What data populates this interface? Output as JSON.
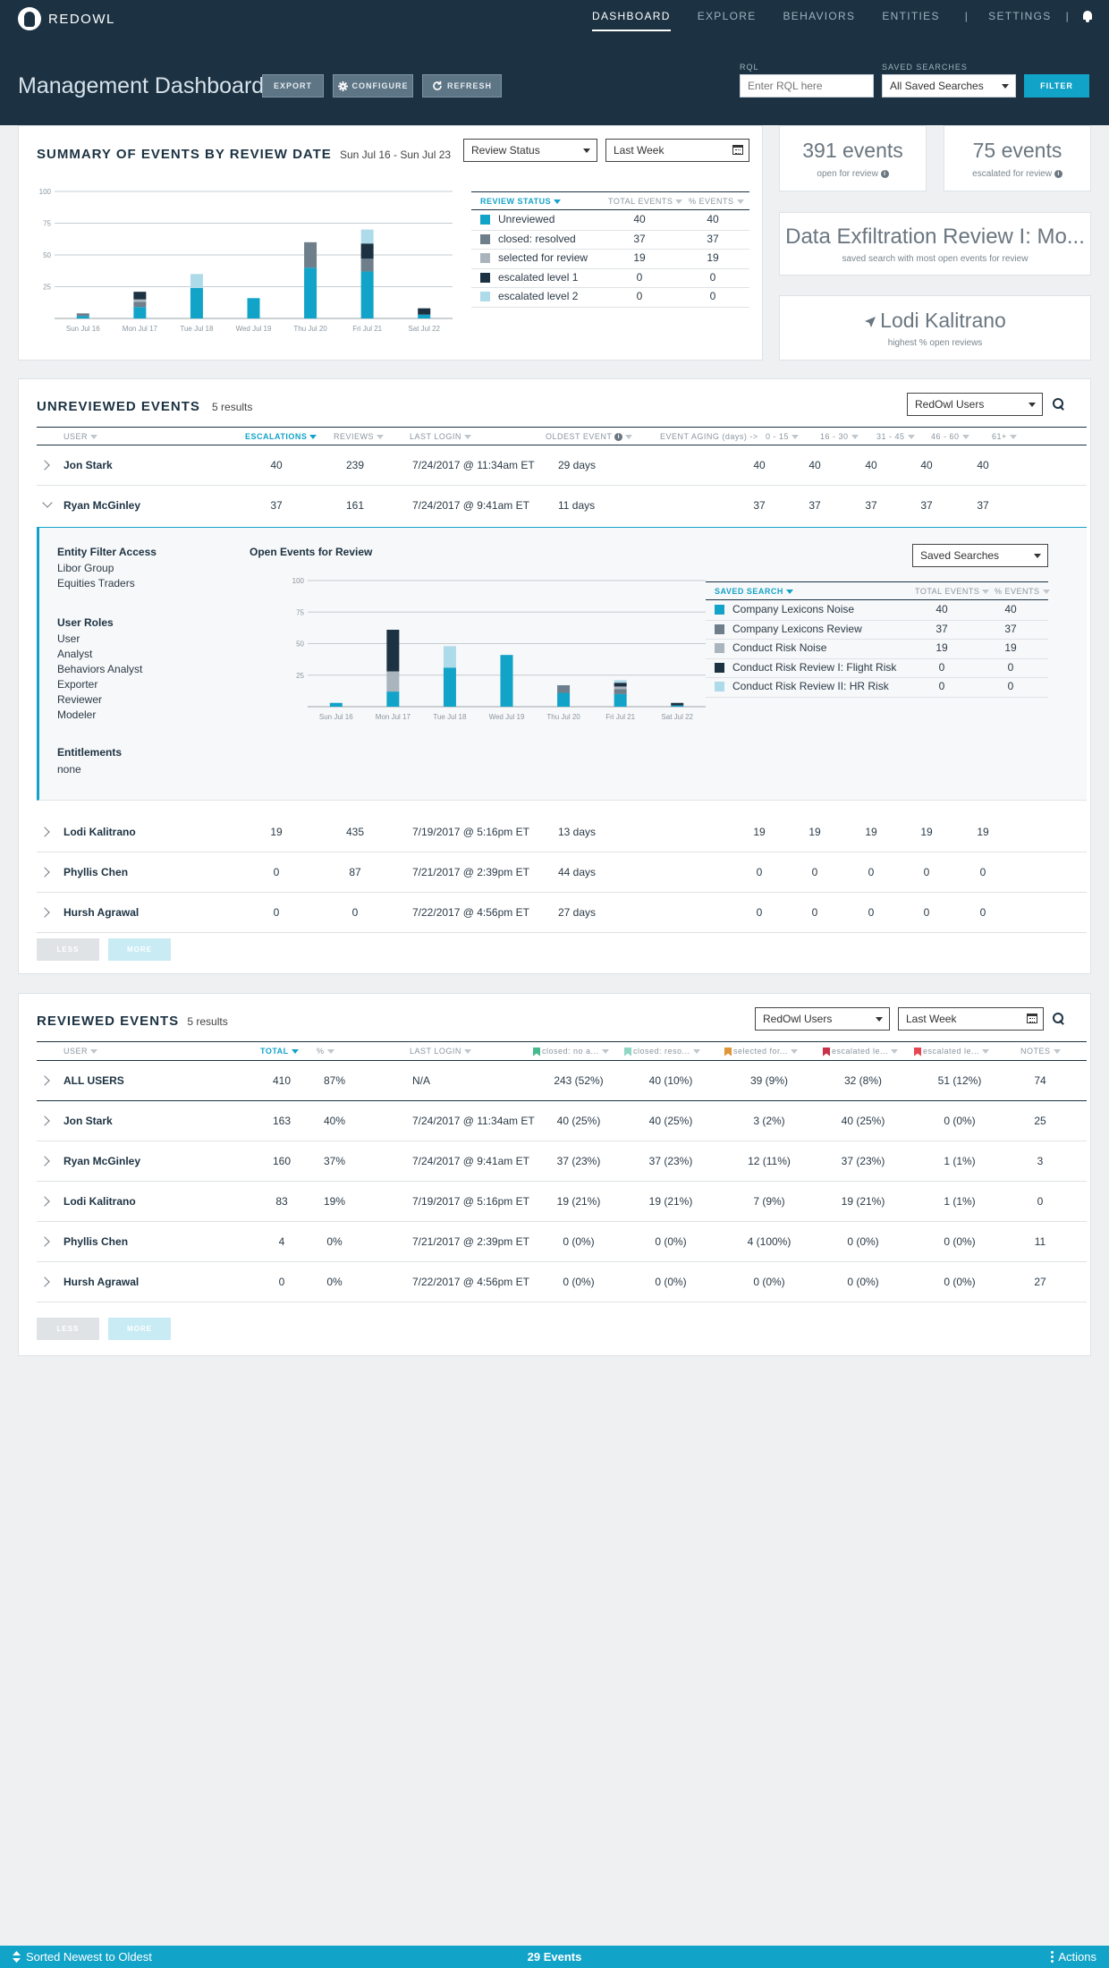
{
  "app": {
    "name": "REDOWL"
  },
  "nav": {
    "items": [
      "DASHBOARD",
      "EXPLORE",
      "BEHAVIORS",
      "ENTITIES",
      "SETTINGS"
    ],
    "separator": "|"
  },
  "header": {
    "title": "Management Dashboard",
    "export_label": "EXPORT",
    "configure_label": "CONFIGURE",
    "refresh_label": "REFRESH",
    "rql_label": "RQL",
    "rql_placeholder": "Enter RQL here",
    "saved_label": "SAVED SEARCHES",
    "saved_value": "All Saved Searches",
    "filter_label": "FILTER"
  },
  "colors": {
    "accent": "#12a3c8",
    "unreviewed": "#12a3c8",
    "closed_resolved": "#6e7e8b",
    "selected_for_review": "#a9b4bc",
    "escalated_level_1": "#1c3242",
    "escalated_level_2": "#aedbea"
  },
  "summary": {
    "title": "SUMMARY OF EVENTS BY REVIEW DATE",
    "date_range": "Sun Jul 16 - Sun Jul 23",
    "group_select": "Review Status",
    "period_select": "Last Week",
    "table_headers": [
      "REVIEW STATUS",
      "TOTAL EVENTS",
      "% EVENTS"
    ],
    "rows": [
      {
        "label": "Unreviewed",
        "total": "40",
        "pct": "40"
      },
      {
        "label": "closed: resolved",
        "total": "37",
        "pct": "37"
      },
      {
        "label": "selected for review",
        "total": "19",
        "pct": "19"
      },
      {
        "label": "escalated level 1",
        "total": "0",
        "pct": "0"
      },
      {
        "label": "escalated level 2",
        "total": "0",
        "pct": "0"
      }
    ]
  },
  "chart_data": [
    {
      "type": "bar",
      "stacked": true,
      "categories": [
        "Sun Jul 16",
        "Mon Jul 17",
        "Tue Jul 18",
        "Wed Jul 19",
        "Thu Jul 20",
        "Fri Jul 21",
        "Sat Jul 22"
      ],
      "ylim": [
        0,
        100
      ],
      "yticks": [
        25,
        50,
        75,
        100
      ],
      "grid": true,
      "series": [
        {
          "name": "Unreviewed",
          "values": [
            2,
            9,
            24,
            16,
            40,
            37,
            3
          ]
        },
        {
          "name": "closed: resolved",
          "values": [
            2,
            4,
            0,
            0,
            20,
            10,
            0
          ]
        },
        {
          "name": "selected for review",
          "values": [
            0,
            2,
            0,
            0,
            0,
            0,
            0
          ]
        },
        {
          "name": "escalated level 1",
          "values": [
            0,
            6,
            0,
            0,
            0,
            12,
            5
          ]
        },
        {
          "name": "escalated level 2",
          "values": [
            0,
            0,
            11,
            0,
            0,
            11,
            0
          ]
        }
      ]
    },
    {
      "type": "bar",
      "stacked": true,
      "categories": [
        "Sun Jul 16",
        "Mon Jul 17",
        "Tue Jul 18",
        "Wed Jul 19",
        "Thu Jul 20",
        "Fri Jul 21",
        "Sat Jul 22"
      ],
      "ylim": [
        0,
        100
      ],
      "yticks": [
        25,
        50,
        75,
        100
      ],
      "grid": true,
      "series": [
        {
          "name": "Company Lexicons Noise",
          "values": [
            3,
            12,
            31,
            41,
            11,
            10,
            1
          ]
        },
        {
          "name": "Company Lexicons Review",
          "values": [
            0,
            0,
            0,
            0,
            6,
            4,
            0
          ]
        },
        {
          "name": "Conduct Risk Noise",
          "values": [
            0,
            16,
            0,
            0,
            0,
            2,
            0
          ]
        },
        {
          "name": "Conduct Risk Review I: Flight Risk",
          "values": [
            0,
            33,
            0,
            0,
            0,
            3,
            2
          ]
        },
        {
          "name": "Conduct Risk Review II: HR Risk",
          "values": [
            0,
            0,
            17,
            0,
            0,
            2,
            0
          ]
        }
      ]
    }
  ],
  "stats": {
    "open_events": "391 events",
    "open_label": "open for review",
    "escalated_events": "75 events",
    "escalated_label": "escalated for review",
    "saved_search_name": "Data Exfiltration Review I: Mo...",
    "saved_search_label": "saved search with most open events for review",
    "top_user": "Lodi Kalitrano",
    "top_user_label": "highest % open reviews"
  },
  "unreviewed": {
    "title": "UNREVIEWED EVENTS",
    "count": "5 results",
    "filter": "RedOwl Users",
    "headers": [
      "USER",
      "ESCALATIONS",
      "REVIEWS",
      "LAST LOGIN",
      "OLDEST EVENT",
      "EVENT AGING (days) ->",
      "0 - 15",
      "16 - 30",
      "31 - 45",
      "46 - 60",
      "61+"
    ],
    "rows": [
      {
        "user": "Jon Stark",
        "esc": "40",
        "rev": "239",
        "login": "7/24/2017 @ 11:34am ET",
        "oldest": "29 days",
        "a": [
          "40",
          "40",
          "40",
          "40",
          "40"
        ]
      },
      {
        "user": "Ryan McGinley",
        "esc": "37",
        "rev": "161",
        "login": "7/24/2017 @ 9:41am ET",
        "oldest": "11 days",
        "a": [
          "37",
          "37",
          "37",
          "37",
          "37"
        ]
      },
      {
        "user": "Lodi Kalitrano",
        "esc": "19",
        "rev": "435",
        "login": "7/19/2017 @ 5:16pm ET",
        "oldest": "13 days",
        "a": [
          "19",
          "19",
          "19",
          "19",
          "19"
        ]
      },
      {
        "user": "Phyllis Chen",
        "esc": "0",
        "rev": "87",
        "login": "7/21/2017 @ 2:39pm ET",
        "oldest": "44 days",
        "a": [
          "0",
          "0",
          "0",
          "0",
          "0"
        ]
      },
      {
        "user": "Hursh Agrawal",
        "esc": "0",
        "rev": "0",
        "login": "7/22/2017 @ 4:56pm ET",
        "oldest": "27 days",
        "a": [
          "0",
          "0",
          "0",
          "0",
          "0"
        ]
      }
    ],
    "less_label": "LESS",
    "more_label": "MORE",
    "detail": {
      "entity_title": "Entity Filter Access",
      "entity_items": [
        "Libor Group",
        "Equities Traders"
      ],
      "roles_title": "User Roles",
      "roles_items": [
        "User",
        "Analyst",
        "Behaviors Analyst",
        "Exporter",
        "Reviewer",
        "Modeler"
      ],
      "ent_title": "Entitlements",
      "ent_items": [
        "none"
      ],
      "chart_title": "Open Events for Review",
      "saved_select": "Saved Searches",
      "table_headers": [
        "SAVED SEARCH",
        "TOTAL EVENTS",
        "% EVENTS"
      ],
      "rows": [
        {
          "label": "Company Lexicons Noise",
          "total": "40",
          "pct": "40"
        },
        {
          "label": "Company Lexicons Review",
          "total": "37",
          "pct": "37"
        },
        {
          "label": "Conduct Risk Noise",
          "total": "19",
          "pct": "19"
        },
        {
          "label": "Conduct Risk Review I: Flight Risk",
          "total": "0",
          "pct": "0"
        },
        {
          "label": "Conduct Risk Review II: HR Risk",
          "total": "0",
          "pct": "0"
        }
      ]
    }
  },
  "reviewed": {
    "title": "REVIEWED EVENTS",
    "count": "5 results",
    "filter": "RedOwl Users",
    "period": "Last Week",
    "headers": [
      "USER",
      "TOTAL",
      "%",
      "LAST LOGIN",
      "closed: no a...",
      "closed: reso...",
      "selected for...",
      "escalated le...",
      "escalated le...",
      "NOTES"
    ],
    "header_flag_colors": [
      "#48b98e",
      "#8fd6c4",
      "#e0953a",
      "#c8334a",
      "#e84552"
    ],
    "rows": [
      {
        "user": "ALL USERS",
        "total": "410",
        "pct": "87%",
        "login": "N/A",
        "c": [
          "243 (52%)",
          "40 (10%)",
          "39 (9%)",
          "32 (8%)",
          "51 (12%)"
        ],
        "notes": "74"
      },
      {
        "user": "Jon Stark",
        "total": "163",
        "pct": "40%",
        "login": "7/24/2017 @ 11:34am ET",
        "c": [
          "40 (25%)",
          "40 (25%)",
          "3 (2%)",
          "40 (25%)",
          "0 (0%)"
        ],
        "notes": "25"
      },
      {
        "user": "Ryan McGinley",
        "total": "160",
        "pct": "37%",
        "login": "7/24/2017 @ 9:41am ET",
        "c": [
          "37 (23%)",
          "37 (23%)",
          "12 (11%)",
          "37 (23%)",
          "1 (1%)"
        ],
        "notes": "3"
      },
      {
        "user": "Lodi Kalitrano",
        "total": "83",
        "pct": "19%",
        "login": "7/19/2017 @ 5:16pm ET",
        "c": [
          "19 (21%)",
          "19 (21%)",
          "7 (9%)",
          "19 (21%)",
          "1 (1%)"
        ],
        "notes": "0"
      },
      {
        "user": "Phyllis Chen",
        "total": "4",
        "pct": "0%",
        "login": "7/21/2017 @ 2:39pm ET",
        "c": [
          "0 (0%)",
          "0 (0%)",
          "4 (100%)",
          "0 (0%)",
          "0 (0%)"
        ],
        "notes": "11"
      },
      {
        "user": "Hursh Agrawal",
        "total": "0",
        "pct": "0%",
        "login": "7/22/2017 @ 4:56pm ET",
        "c": [
          "0 (0%)",
          "0 (0%)",
          "0 (0%)",
          "0 (0%)",
          "0 (0%)"
        ],
        "notes": "27"
      }
    ],
    "less_label": "LESS",
    "more_label": "MORE"
  },
  "footer": {
    "sort_label": "Sorted Newest to Oldest",
    "count_label": "29 Events",
    "actions_label": "Actions"
  }
}
